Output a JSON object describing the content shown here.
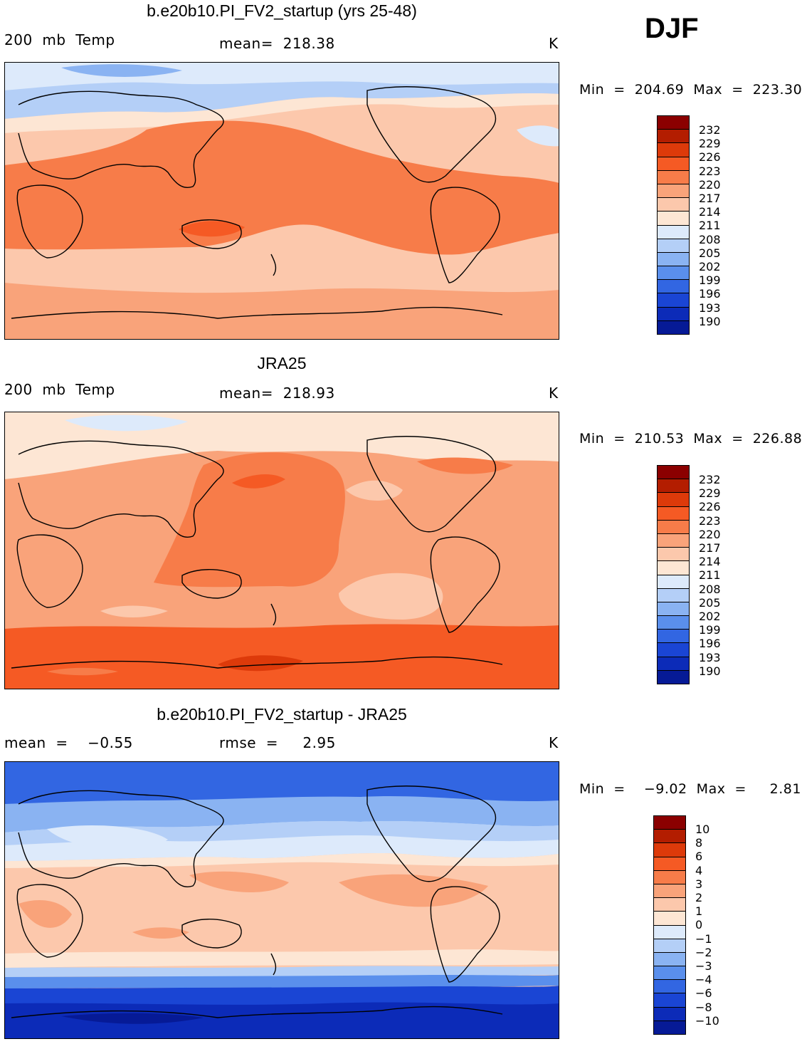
{
  "season": "DJF",
  "colors": {
    "temp_scale": [
      "#8b0000",
      "#b31d00",
      "#dd3a0a",
      "#f55a24",
      "#f77c49",
      "#f9a37a",
      "#fcc8ac",
      "#fde6d4",
      "#ddeafb",
      "#b4cff7",
      "#8ab3f2",
      "#5a8fec",
      "#3266e2",
      "#1a45d4",
      "#0c2bb8",
      "#061a96"
    ],
    "diff_scale": [
      "#8b0000",
      "#b31d00",
      "#dd3a0a",
      "#f55a24",
      "#f77c49",
      "#f9a37a",
      "#fcc8ac",
      "#fde6d4",
      "#ddeafb",
      "#b4cff7",
      "#8ab3f2",
      "#5a8fec",
      "#3266e2",
      "#1a45d4",
      "#0c2bb8",
      "#061a96"
    ]
  },
  "panels": [
    {
      "title": "b.e20b10.PI_FV2_startup (yrs 25-48)",
      "left_label": "200  mb  Temp",
      "center_label": "mean=  218.38",
      "units": "K",
      "minmax": "Min  =  204.69  Max  =  223.30",
      "levels": [
        "232",
        "229",
        "226",
        "223",
        "220",
        "217",
        "214",
        "211",
        "208",
        "205",
        "202",
        "199",
        "196",
        "193",
        "190"
      ]
    },
    {
      "title": "JRA25",
      "left_label": "200  mb  Temp",
      "center_label": "mean=  218.93",
      "units": "K",
      "minmax": "Min  =  210.53  Max  =  226.88",
      "levels": [
        "232",
        "229",
        "226",
        "223",
        "220",
        "217",
        "214",
        "211",
        "208",
        "205",
        "202",
        "199",
        "196",
        "193",
        "190"
      ]
    },
    {
      "title": "b.e20b10.PI_FV2_startup - JRA25",
      "left_label": "mean  =    −0.55",
      "center_label": "rmse  =     2.95",
      "units": "K",
      "minmax": "Min  =    −9.02  Max  =     2.81",
      "levels": [
        "10",
        "8",
        "6",
        "4",
        "3",
        "2",
        "1",
        "0",
        "−1",
        "−2",
        "−3",
        "−4",
        "−6",
        "−8",
        "−10"
      ]
    }
  ]
}
